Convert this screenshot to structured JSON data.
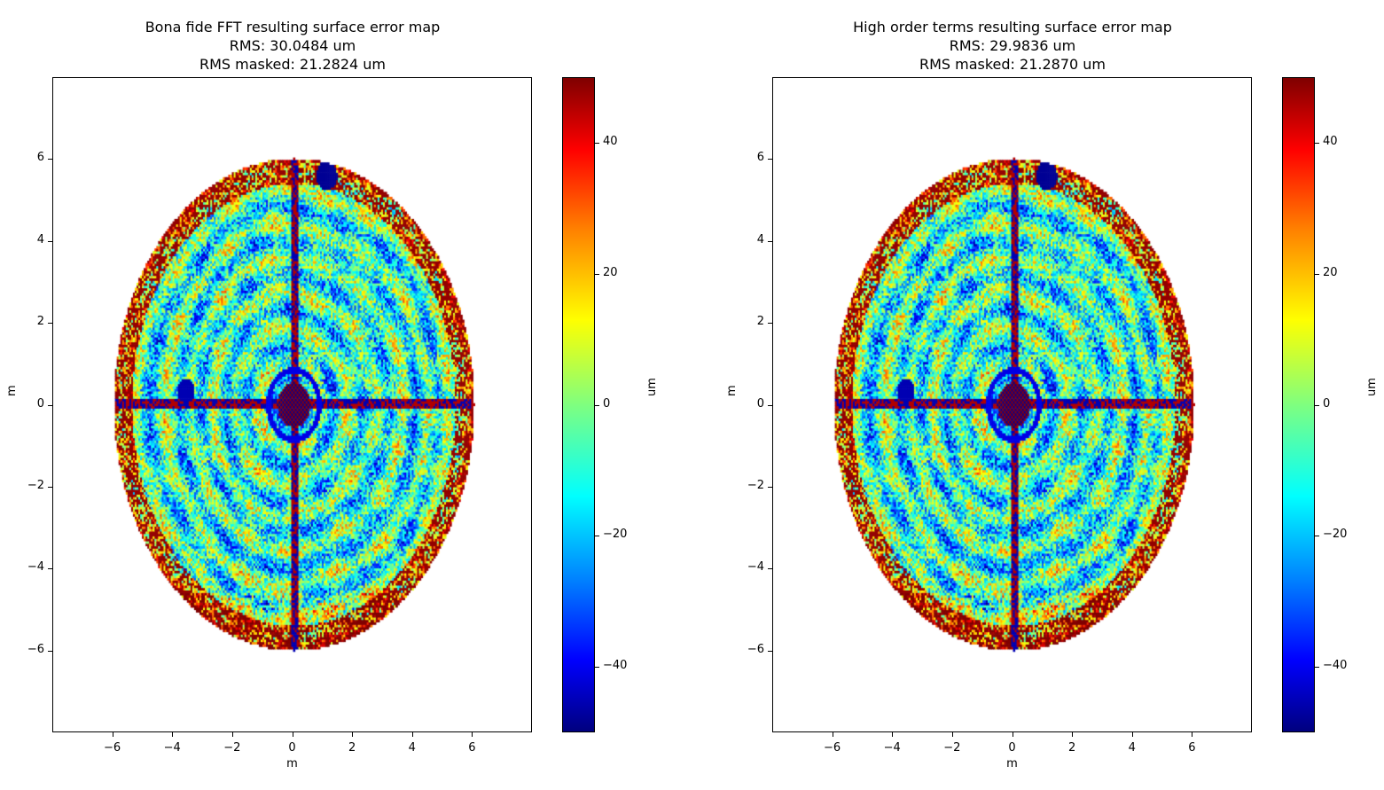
{
  "chart_data": [
    {
      "type": "heatmap",
      "title": [
        "Bona fide FFT resulting surface error map",
        "RMS: 30.0484 um",
        "RMS masked: 21.2824 um"
      ],
      "xlabel": "m",
      "ylabel": "m",
      "xlim": [
        -8,
        8
      ],
      "ylim": [
        -8,
        8
      ],
      "xticks": [
        "−6",
        "−4",
        "−2",
        "0",
        "2",
        "4",
        "6"
      ],
      "yticks": [
        "−6",
        "−4",
        "−2",
        "0",
        "2",
        "4",
        "6"
      ],
      "xtick_values": [
        -6,
        -4,
        -2,
        0,
        2,
        4,
        6
      ],
      "ytick_values": [
        -6,
        -4,
        -2,
        0,
        2,
        4,
        6
      ],
      "colormap": "jet",
      "clim": [
        -50,
        50
      ],
      "colorbar_label": "um",
      "colorbar_ticks": [
        "−40",
        "−20",
        "0",
        "20",
        "40"
      ],
      "colorbar_tick_values": [
        -40,
        -20,
        0,
        20,
        40
      ],
      "aperture_radius_m": 6
    },
    {
      "type": "heatmap",
      "title": [
        "High order terms resulting surface error map",
        "RMS: 29.9836 um",
        "RMS masked: 21.2870 um"
      ],
      "xlabel": "m",
      "ylabel": "m",
      "xlim": [
        -8,
        8
      ],
      "ylim": [
        -8,
        8
      ],
      "xticks": [
        "−6",
        "−4",
        "−2",
        "0",
        "2",
        "4",
        "6"
      ],
      "yticks": [
        "−6",
        "−4",
        "−2",
        "0",
        "2",
        "4",
        "6"
      ],
      "xtick_values": [
        -6,
        -4,
        -2,
        0,
        2,
        4,
        6
      ],
      "ytick_values": [
        -6,
        -4,
        -2,
        0,
        2,
        4,
        6
      ],
      "colormap": "jet",
      "clim": [
        -50,
        50
      ],
      "colorbar_label": "um",
      "colorbar_ticks": [
        "−40",
        "−20",
        "0",
        "20",
        "40"
      ],
      "colorbar_tick_values": [
        -40,
        -20,
        0,
        20,
        40
      ],
      "aperture_radius_m": 6
    }
  ]
}
